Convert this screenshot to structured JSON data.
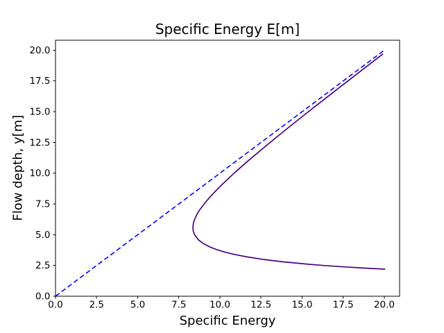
{
  "figure": {
    "background": "#ffffff",
    "spine_color": "#000000"
  },
  "chart_data": {
    "type": "line",
    "title": "Specific Energy E[m]",
    "xlabel": "Specific Energy",
    "ylabel": "Flow depth, y[m]",
    "xlim": [
      0,
      20.93
    ],
    "ylim": [
      0,
      20.81
    ],
    "xticks": [
      0.0,
      2.5,
      5.0,
      7.5,
      10.0,
      12.5,
      15.0,
      17.5,
      20.0
    ],
    "yticks": [
      0.0,
      2.5,
      5.0,
      7.5,
      10.0,
      12.5,
      15.0,
      17.5,
      20.0
    ],
    "tick_decimals": 1,
    "grid": false,
    "legend": null,
    "series": [
      {
        "name": "energy-equals-depth-line",
        "description": "E = y reference asymptote",
        "color": "#0000ff",
        "line_style": "dashed",
        "line_width": 1.6,
        "points": [
          [
            0,
            0
          ],
          [
            20.05,
            20.05
          ]
        ]
      },
      {
        "name": "specific-energy-curve",
        "description": "E = y + q^2/(2 g y^2), critical point near E=8.4, y=5.6",
        "color": "#4B0082",
        "line_style": "solid",
        "line_width": 1.7,
        "points": [
          [
            20.05,
            2.2
          ],
          [
            18.63,
            2.3
          ],
          [
            17.4,
            2.4
          ],
          [
            16.32,
            2.5
          ],
          [
            15.38,
            2.6
          ],
          [
            13.82,
            2.8
          ],
          [
            12.6,
            3.0
          ],
          [
            11.64,
            3.2
          ],
          [
            10.87,
            3.4
          ],
          [
            10.27,
            3.6
          ],
          [
            9.78,
            3.8
          ],
          [
            9.4,
            4.0
          ],
          [
            8.97,
            4.3
          ],
          [
            8.68,
            4.6
          ],
          [
            8.46,
            5.0
          ],
          [
            8.38,
            5.3
          ],
          [
            8.36,
            5.57
          ],
          [
            8.38,
            5.9
          ],
          [
            8.45,
            6.2
          ],
          [
            8.58,
            6.6
          ],
          [
            8.76,
            7.0
          ],
          [
            9.04,
            7.5
          ],
          [
            9.35,
            8.0
          ],
          [
            9.7,
            8.5
          ],
          [
            10.07,
            9.0
          ],
          [
            10.86,
            10.0
          ],
          [
            11.71,
            11.0
          ],
          [
            12.6,
            12.0
          ],
          [
            13.51,
            13.0
          ],
          [
            14.44,
            14.0
          ],
          [
            15.38,
            15.0
          ],
          [
            16.34,
            16.0
          ],
          [
            17.3,
            17.0
          ],
          [
            18.27,
            18.0
          ],
          [
            19.24,
            19.0
          ],
          [
            19.92,
            19.7
          ]
        ]
      }
    ]
  }
}
